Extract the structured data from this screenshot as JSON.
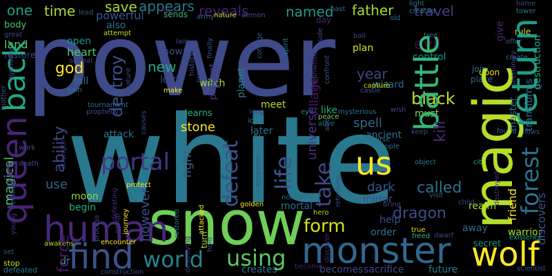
{
  "words": [
    {
      "id": "power",
      "text": "power",
      "color": "#3e4a89"
    },
    {
      "id": "white",
      "text": "white",
      "color": "#2a788e"
    },
    {
      "id": "snow",
      "text": "snow",
      "color": "#6ece58"
    },
    {
      "id": "magic",
      "text": "magic",
      "color": "#b5de2b"
    },
    {
      "id": "monster",
      "text": "monster",
      "color": "#31688e"
    },
    {
      "id": "queen",
      "text": "queen",
      "color": "#482475"
    },
    {
      "id": "human",
      "text": "human",
      "color": "#482878"
    },
    {
      "id": "find",
      "text": "find",
      "color": "#3b528b"
    },
    {
      "id": "battle",
      "text": "battle",
      "color": "#35b779"
    },
    {
      "id": "return",
      "text": "return",
      "color": "#1f9e89"
    },
    {
      "id": "wolf",
      "text": "wolf",
      "color": "#fde725"
    },
    {
      "id": "us",
      "text": "us",
      "color": "#fde725"
    },
    {
      "id": "world",
      "text": "world",
      "color": "#26828e"
    },
    {
      "id": "using",
      "text": "using",
      "color": "#5ec962"
    },
    {
      "id": "back",
      "text": "back",
      "color": "#22a884"
    },
    {
      "id": "portal",
      "text": "portal",
      "color": "#443983"
    },
    {
      "id": "forest",
      "text": "forest",
      "color": "#2c728e"
    },
    {
      "id": "form",
      "text": "form",
      "color": "#d0e11c"
    },
    {
      "id": "life",
      "text": "life",
      "color": "#39568c"
    },
    {
      "id": "defeat",
      "text": "defeat",
      "color": "#3b528b"
    },
    {
      "id": "take",
      "text": "take",
      "color": "#3e4989"
    },
    {
      "id": "one",
      "text": "one",
      "color": "#1fa088"
    },
    {
      "id": "time",
      "text": "time",
      "color": "#addc30"
    },
    {
      "id": "save",
      "text": "save",
      "color": "#a5db36"
    },
    {
      "id": "appears",
      "text": "appears",
      "color": "#29798e"
    },
    {
      "id": "reveals",
      "text": "reveals",
      "color": "#482173"
    },
    {
      "id": "named",
      "text": "named",
      "color": "#1e9b8a"
    },
    {
      "id": "father",
      "text": "father",
      "color": "#a2da37"
    },
    {
      "id": "travel",
      "text": "travel",
      "color": "#443a83"
    },
    {
      "id": "powerful",
      "text": "powerful",
      "color": "#3a548c"
    },
    {
      "id": "sends",
      "text": "sends",
      "color": "#37b878"
    },
    {
      "id": "also",
      "text": "also",
      "color": "#2c738e"
    },
    {
      "id": "body",
      "text": "body",
      "color": "#4ec36b"
    },
    {
      "id": "land",
      "text": "land",
      "color": "#5ec962"
    },
    {
      "id": "restore",
      "text": "restore",
      "color": "#433e85"
    },
    {
      "id": "open",
      "text": "open",
      "color": "#20928c"
    },
    {
      "id": "heart",
      "text": "heart",
      "color": "#50c46a"
    },
    {
      "id": "god",
      "text": "god",
      "color": "#fde725"
    },
    {
      "id": "fall",
      "text": "fall",
      "color": "#2e6f8e"
    },
    {
      "id": "destroy",
      "text": "destroy",
      "color": "#3b528b"
    },
    {
      "id": "known",
      "text": "known",
      "color": "#3e4a89"
    },
    {
      "id": "new",
      "text": "new",
      "color": "#22a884"
    },
    {
      "id": "lord",
      "text": "lord",
      "color": "#3f4889"
    },
    {
      "id": "planet",
      "text": "planet",
      "color": "#26828e"
    },
    {
      "id": "present",
      "text": "present",
      "color": "#443983"
    },
    {
      "id": "escape",
      "text": "escape",
      "color": "#2a768e"
    },
    {
      "id": "village",
      "text": "village",
      "color": "#481668"
    },
    {
      "id": "universe",
      "text": "universe",
      "color": "#46327e"
    },
    {
      "id": "year",
      "text": "year",
      "color": "#3f4788"
    },
    {
      "id": "wizard",
      "text": "wizard",
      "color": "#2f6b8e"
    },
    {
      "id": "plan",
      "text": "plan",
      "color": "#d2e21b"
    },
    {
      "id": "evil",
      "text": "evil",
      "color": "#440154"
    },
    {
      "id": "control",
      "text": "control",
      "color": "#218e8d"
    },
    {
      "id": "black",
      "text": "black",
      "color": "#c2df23"
    },
    {
      "id": "kill",
      "text": "kill",
      "color": "#482878"
    },
    {
      "id": "must",
      "text": "must",
      "color": "#8bd646"
    },
    {
      "id": "dragon",
      "text": "dragon",
      "color": "#3e4c8a"
    },
    {
      "id": "spell",
      "text": "spell",
      "color": "#31688e"
    },
    {
      "id": "ancient",
      "text": "ancient",
      "color": "#2c728e"
    },
    {
      "id": "witch",
      "text": "witch",
      "color": "#addc30"
    },
    {
      "id": "meet",
      "text": "meet",
      "color": "#b5de2b"
    },
    {
      "id": "learns",
      "text": "learns",
      "color": "#29af7f"
    },
    {
      "id": "like",
      "text": "like",
      "color": "#22a884"
    },
    {
      "id": "stone",
      "text": "stone",
      "color": "#fde725"
    },
    {
      "id": "fight",
      "text": "fight",
      "color": "#355f8d"
    },
    {
      "id": "later",
      "text": "later",
      "color": "#2c738e"
    },
    {
      "id": "attack",
      "text": "attack",
      "color": "#2a778e"
    },
    {
      "id": "ability",
      "text": "ability",
      "color": "#3e4a89"
    },
    {
      "id": "called",
      "text": "called",
      "color": "#2d708e"
    },
    {
      "id": "dark",
      "text": "dark",
      "color": "#39568c"
    },
    {
      "id": "mirror",
      "text": "mirror",
      "color": "#3e4989"
    },
    {
      "id": "use",
      "text": "use",
      "color": "#31688e"
    },
    {
      "id": "moon",
      "text": "moon",
      "color": "#93d741"
    },
    {
      "id": "begin",
      "text": "begin",
      "color": "#29af7f"
    },
    {
      "id": "however",
      "text": "however",
      "color": "#3b528b"
    },
    {
      "id": "magical",
      "text": "magical",
      "color": "#50c46a"
    },
    {
      "id": "giant",
      "text": "giant",
      "color": "#453581"
    },
    {
      "id": "mortal",
      "text": "mortal",
      "color": "#2e6e8e"
    },
    {
      "id": "help",
      "text": "help",
      "color": "#3c508b"
    },
    {
      "id": "order",
      "text": "order",
      "color": "#2c728e"
    },
    {
      "id": "realm",
      "text": "realm",
      "color": "#aadc32"
    },
    {
      "id": "away",
      "text": "away",
      "color": "#2d708e"
    },
    {
      "id": "friend",
      "text": "friend",
      "color": "#fde725"
    },
    {
      "id": "warrior",
      "text": "warrior",
      "color": "#addc30"
    },
    {
      "id": "secret",
      "text": "secret",
      "color": "#21918c"
    },
    {
      "id": "dr",
      "text": "dr",
      "color": "#32b67a"
    },
    {
      "id": "force",
      "text": "force",
      "color": "#481a6c"
    },
    {
      "id": "becomes",
      "text": "becomes",
      "color": "#3e4a89"
    },
    {
      "id": "sacrifice",
      "text": "sacrifice",
      "color": "#3e4989"
    },
    {
      "id": "future",
      "text": "future",
      "color": "#26818e"
    },
    {
      "id": "creates",
      "text": "creates",
      "color": "#2e6d8e"
    },
    {
      "id": "transforms",
      "text": "transforms",
      "color": "#2c738e"
    },
    {
      "id": "destruction",
      "text": "destruction",
      "color": "#22a884"
    },
    {
      "id": "discovers",
      "text": "discovers",
      "color": "#3b528b"
    },
    {
      "id": "master",
      "text": "master",
      "color": "#2d708e"
    },
    {
      "id": "found",
      "text": "found",
      "color": "#2f6b8e"
    },
    {
      "id": "tower",
      "text": "tower",
      "color": "#2a788e"
    },
    {
      "id": "rule",
      "text": "rule",
      "color": "#d8e219"
    },
    {
      "id": "upon",
      "text": "upon",
      "color": "#f1e51d"
    },
    {
      "id": "join",
      "text": "join",
      "color": "#2d718e"
    },
    {
      "id": "place",
      "text": "place",
      "color": "#32658e"
    },
    {
      "id": "offer",
      "text": "offer",
      "color": "#365c8d"
    },
    {
      "id": "create",
      "text": "create",
      "color": "#2c738e"
    },
    {
      "id": "encounter",
      "text": "encounter",
      "color": "#fde725"
    },
    {
      "id": "awakens",
      "text": "awakens",
      "color": "#b8de29"
    },
    {
      "id": "hero",
      "text": "hero",
      "color": "#addc30"
    },
    {
      "id": "true",
      "text": "true",
      "color": "#dde318"
    },
    {
      "id": "freed",
      "text": "freed",
      "color": "#35b779"
    },
    {
      "id": "dwarf",
      "text": "dwarf",
      "color": "#3e4a89"
    },
    {
      "id": "existence",
      "text": "existence",
      "color": "#22a884"
    },
    {
      "id": "scientist",
      "text": "scientist",
      "color": "#3d4e8a"
    },
    {
      "id": "child",
      "text": "child",
      "color": "#3e4989"
    },
    {
      "id": "stop",
      "text": "stop",
      "color": "#c8e020"
    },
    {
      "id": "defeated",
      "text": "defeated",
      "color": "#2a778e"
    },
    {
      "id": "set",
      "text": "set",
      "color": "#39568c"
    },
    {
      "id": "become",
      "text": "become",
      "color": "#481f70"
    },
    {
      "id": "construction",
      "text": "construction",
      "color": "#3f4889"
    },
    {
      "id": "mysterious",
      "text": "mysterious",
      "color": "#2a778e"
    },
    {
      "id": "wish",
      "text": "wish",
      "color": "#3f4889"
    },
    {
      "id": "keep",
      "text": "keep",
      "color": "#3b518b"
    },
    {
      "id": "curse",
      "text": "curse",
      "color": "#2f6c8e"
    },
    {
      "id": "people",
      "text": "people",
      "color": "#2b748e"
    },
    {
      "id": "city",
      "text": "city",
      "color": "#22a884"
    },
    {
      "id": "object",
      "text": "object",
      "color": "#2a778e"
    },
    {
      "id": "visit",
      "text": "visit",
      "color": "#33638d"
    },
    {
      "id": "bring",
      "text": "bring",
      "color": "#3f4889"
    },
    {
      "id": "normal",
      "text": "normal",
      "color": "#2e6e8e"
    },
    {
      "id": "golden",
      "text": "golden",
      "color": "#fde725"
    },
    {
      "id": "protect",
      "text": "protect",
      "color": "#fde725"
    },
    {
      "id": "attacked",
      "text": "attacked",
      "color": "#fde725"
    },
    {
      "id": "restored",
      "text": "restored",
      "color": "#2c728e"
    },
    {
      "id": "death",
      "text": "death",
      "color": "#3e4a89"
    },
    {
      "id": "defeating",
      "text": "defeating",
      "color": "#472f7d"
    },
    {
      "id": "process",
      "text": "process",
      "color": "#39568c"
    },
    {
      "id": "strength",
      "text": "strength",
      "color": "#46337f"
    },
    {
      "id": "work",
      "text": "work",
      "color": "#3b528b"
    },
    {
      "id": "group",
      "text": "group",
      "color": "#453882"
    },
    {
      "id": "journey",
      "text": "journey",
      "color": "#fde725"
    },
    {
      "id": "destroying",
      "text": "destroying",
      "color": "#453882"
    },
    {
      "id": "turn",
      "text": "turn",
      "color": "#a8db34"
    },
    {
      "id": "hold",
      "text": "hold",
      "color": "#39568c"
    },
    {
      "id": "discover",
      "text": "discover",
      "color": "#482475"
    },
    {
      "id": "returning",
      "text": "returning",
      "color": "#3e4989"
    },
    {
      "id": "kingdom",
      "text": "kingdom",
      "color": "#3b528b"
    },
    {
      "id": "alive",
      "text": "alive",
      "color": "#2a778e"
    },
    {
      "id": "peace",
      "text": "peace",
      "color": "#7ad151"
    },
    {
      "id": "ice",
      "text": "ice",
      "color": "#2a788e"
    },
    {
      "id": "eye",
      "text": "eye",
      "color": "#26828e"
    },
    {
      "id": "long",
      "text": "long",
      "color": "#46337f"
    },
    {
      "id": "capture",
      "text": "capture",
      "color": "#d0e11c"
    },
    {
      "id": "castle",
      "text": "castle",
      "color": "#3b528b"
    },
    {
      "id": "tournament",
      "text": "tournament",
      "color": "#2e6e8e"
    },
    {
      "id": "prophecy",
      "text": "prophecy",
      "color": "#3d4d8a"
    },
    {
      "id": "causes",
      "text": "causes",
      "color": "#3c4f8a"
    },
    {
      "id": "creature",
      "text": "creature",
      "color": "#3e4a89"
    },
    {
      "id": "history",
      "text": "history",
      "color": "#3b528b"
    },
    {
      "id": "make",
      "text": "make",
      "color": "#fde725"
    },
    {
      "id": "gain",
      "text": "gain",
      "color": "#2e6e8e"
    },
    {
      "id": "animal",
      "text": "animal",
      "color": "#3e4a89"
    },
    {
      "id": "attempt",
      "text": "attempt",
      "color": "#c2df23"
    },
    {
      "id": "lair",
      "text": "lair",
      "color": "#3e4989"
    },
    {
      "id": "army",
      "text": "army",
      "color": "#32658e"
    },
    {
      "id": "nature",
      "text": "nature",
      "color": "#b5de2b"
    },
    {
      "id": "demon",
      "text": "demon",
      "color": "#3d4e8a"
    },
    {
      "id": "past",
      "text": "past",
      "color": "#2e6e8e"
    },
    {
      "id": "race",
      "text": "race",
      "color": "#46337f"
    },
    {
      "id": "lead",
      "text": "lead",
      "color": "#3b528b"
    },
    {
      "id": "light",
      "text": "light",
      "color": "#2a778e"
    },
    {
      "id": "created",
      "text": "created",
      "color": "#2a788e"
    },
    {
      "id": "home",
      "text": "home",
      "color": "#3f4889"
    },
    {
      "id": "seemingly",
      "text": "seemingly",
      "color": "#3e4a89"
    },
    {
      "id": "give",
      "text": "give",
      "color": "#482878"
    },
    {
      "id": "old",
      "text": "old",
      "color": "#2c728e"
    },
    {
      "id": "ball",
      "text": "ball",
      "color": "#3f4889"
    },
    {
      "id": "tree",
      "text": "tree",
      "color": "#2d708e"
    },
    {
      "id": "day",
      "text": "day",
      "color": "#482475"
    },
    {
      "id": "great",
      "text": "great",
      "color": "#3e4a89"
    },
    {
      "id": "mother",
      "text": "mother",
      "color": "#3b528b"
    },
    {
      "id": "legendary",
      "text": "legendary",
      "color": "#3e4989"
    },
    {
      "id": "finally",
      "text": "finally",
      "color": "#3b528b"
    },
    {
      "id": "prevent",
      "text": "prevent",
      "color": "#3e4a89"
    },
    {
      "id": "spirit",
      "text": "spirit",
      "color": "#2a778e"
    },
    {
      "id": "kidnaps",
      "text": "kidnaps",
      "color": "#3f4889"
    },
    {
      "id": "inside",
      "text": "inside",
      "color": "#3e4a89"
    },
    {
      "id": "meanwhile",
      "text": "meanwhile",
      "color": "#453882"
    },
    {
      "id": "confront",
      "text": "confront",
      "color": "#3b528b"
    },
    {
      "id": "way",
      "text": "way",
      "color": "#3e4a89"
    },
    {
      "id": "allows",
      "text": "allows",
      "color": "#3b528b"
    },
    {
      "id": "young",
      "text": "young",
      "color": "#46337f"
    },
    {
      "id": "relative",
      "text": "relative",
      "color": "#3e4a89"
    },
    {
      "id": "abe",
      "text": "abe",
      "color": "#3b528b"
    },
    {
      "id": "destroyed",
      "text": "destroyed",
      "color": "#453882"
    },
    {
      "id": "cottage",
      "text": "cottage",
      "color": "#3b528b"
    }
  ]
}
